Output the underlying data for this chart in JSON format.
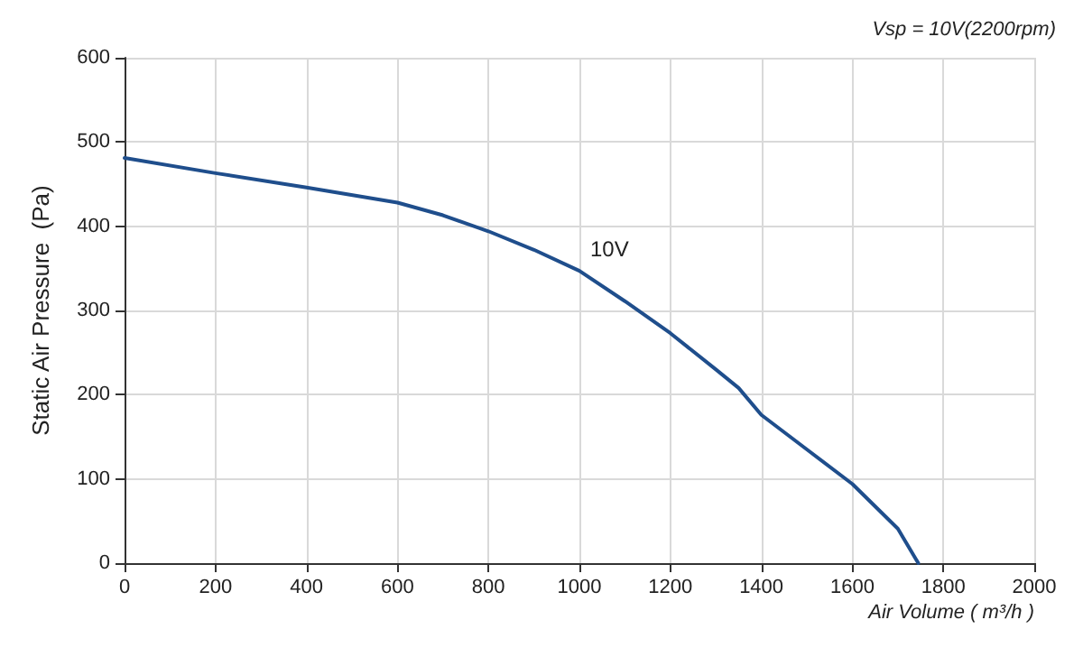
{
  "chart_data": {
    "type": "line",
    "subtitle": "Vsp = 10V(2200rpm)",
    "xlabel": "Air Volume ( m³/h )",
    "ylabel": "Static Air Pressure  (Pa)",
    "x": [
      0,
      200,
      400,
      600,
      700,
      800,
      900,
      1000,
      1100,
      1200,
      1300,
      1350,
      1400,
      1500,
      1600,
      1700,
      1745
    ],
    "series": [
      {
        "name": "10V",
        "color": "#1f4e8c",
        "values": [
          481,
          463,
          446,
          428,
          413,
          394,
          372,
          347,
          311,
          273,
          230,
          208,
          176,
          135,
          94,
          41,
          0
        ]
      }
    ],
    "xlim": [
      0,
      2000
    ],
    "xticks": [
      0,
      200,
      400,
      600,
      800,
      1000,
      1200,
      1400,
      1600,
      1800,
      2000
    ],
    "ylim": [
      0,
      600
    ],
    "yticks": [
      0,
      100,
      200,
      300,
      400,
      500,
      600
    ],
    "grid": true,
    "marker": "none",
    "line_style": "solid",
    "legend": false
  }
}
